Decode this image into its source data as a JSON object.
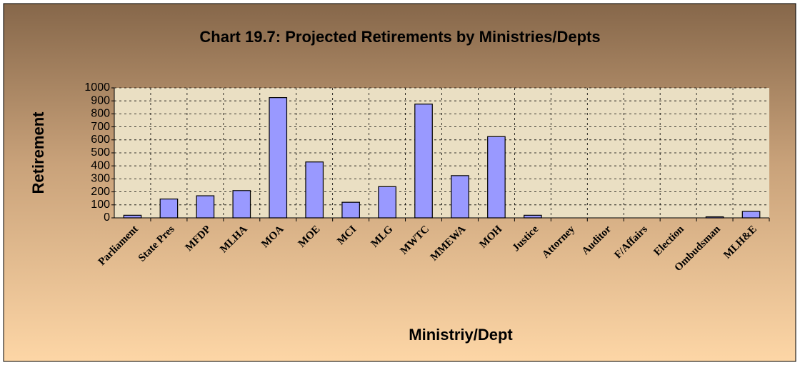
{
  "chart_data": {
    "type": "bar",
    "title": "Chart 19.7: Projected Retirements by Ministries/Depts",
    "x_label": "Ministriy/Dept",
    "y_label": "Retirement",
    "categories": [
      "Parliament",
      "State Pres",
      "MFDP",
      "MLHA",
      "MOA",
      "MOE",
      "MCI",
      "MLG",
      "MWTC",
      "MMEWA",
      "MOH",
      "Justice",
      "Attorney",
      "Auditor",
      "F/Affairs",
      "Election",
      "Ombudsman",
      "MLH&E"
    ],
    "values": [
      20,
      145,
      170,
      210,
      925,
      430,
      120,
      240,
      875,
      325,
      625,
      20,
      0,
      0,
      0,
      0,
      8,
      50
    ],
    "color": "#9999ff",
    "ylim": [
      0,
      1000
    ],
    "yticks": [
      0,
      100,
      200,
      300,
      400,
      500,
      600,
      700,
      800,
      900,
      1000
    ],
    "grid": true
  }
}
